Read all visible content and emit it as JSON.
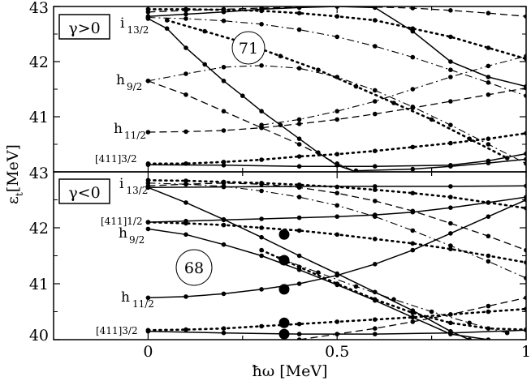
{
  "chart_data": [
    {
      "type": "line",
      "panel": "upper",
      "box_label": "γ>0",
      "circle_label": "71",
      "xlabel": "ħω [MeV]",
      "ylabel": "ε_t [MeV]",
      "xlim": [
        -0.25,
        1.0
      ],
      "ylim": [
        40.0,
        43.0
      ],
      "yticks": [
        "43",
        "42",
        "41"
      ],
      "level_labels": [
        {
          "main": "i",
          "sub": "13/2"
        },
        {
          "main": "h",
          "sub": "9/2"
        },
        {
          "main": "h",
          "sub": "11/2"
        },
        {
          "main": "[411]3/2",
          "sub": ""
        }
      ],
      "series": [
        {
          "style": "solid",
          "x": [
            0,
            0.05,
            0.1,
            0.15,
            0.2,
            0.25,
            0.3,
            0.35,
            0.4,
            0.45,
            0.5,
            0.55
          ],
          "y": [
            42.78,
            42.6,
            42.25,
            41.95,
            41.65,
            41.38,
            41.1,
            40.85,
            40.6,
            40.35,
            40.12,
            40.0
          ]
        },
        {
          "style": "solid",
          "x": [
            0,
            0.1,
            0.2,
            0.3,
            0.4,
            0.5,
            0.6,
            0.7,
            0.8,
            0.9,
            1.0
          ],
          "y": [
            42.82,
            42.86,
            42.9,
            42.95,
            42.98,
            43.0,
            42.98,
            42.55,
            42.0,
            41.72,
            41.55
          ]
        },
        {
          "style": "solid",
          "x": [
            0,
            0.2,
            0.4,
            0.6,
            0.8,
            0.9,
            1.0
          ],
          "y": [
            40.13,
            40.12,
            40.1,
            40.1,
            40.12,
            40.2,
            40.33
          ]
        },
        {
          "style": "solid",
          "x": [
            0.55,
            0.7,
            0.8,
            0.9,
            1.0
          ],
          "y": [
            40.02,
            40.05,
            40.1,
            40.16,
            40.23
          ]
        },
        {
          "style": "dotted",
          "x": [
            0,
            0.1,
            0.2,
            0.3,
            0.4,
            0.5,
            0.6,
            0.7,
            0.8,
            0.9,
            1.0
          ],
          "y": [
            40.15,
            40.15,
            40.18,
            40.22,
            40.28,
            40.32,
            40.38,
            40.45,
            40.52,
            40.6,
            40.7
          ]
        },
        {
          "style": "dotted",
          "x": [
            0,
            0.1,
            0.2,
            0.3,
            0.4,
            0.5,
            0.6,
            0.7,
            0.8,
            0.9,
            1.0
          ],
          "y": [
            42.95,
            42.95,
            42.94,
            42.92,
            42.88,
            42.82,
            42.75,
            42.6,
            42.45,
            42.25,
            42.05
          ]
        },
        {
          "style": "dotted",
          "x": [
            0.05,
            0.15,
            0.25,
            0.35,
            0.45,
            0.55,
            0.65,
            0.75,
            0.85,
            0.95
          ],
          "y": [
            42.75,
            42.55,
            42.35,
            42.1,
            41.85,
            41.55,
            41.25,
            40.95,
            40.6,
            40.25
          ]
        },
        {
          "style": "dashed",
          "x": [
            0,
            0.1,
            0.2,
            0.3,
            0.4,
            0.5,
            0.6,
            0.7,
            0.8,
            0.9,
            1.0
          ],
          "y": [
            40.72,
            40.73,
            40.75,
            40.8,
            40.87,
            40.95,
            41.05,
            41.16,
            41.28,
            41.4,
            41.52
          ]
        },
        {
          "style": "dashed",
          "x": [
            0,
            0.1,
            0.2,
            0.3,
            0.4,
            0.5,
            0.55
          ],
          "y": [
            41.65,
            41.4,
            41.1,
            40.8,
            40.5,
            40.15,
            40.0
          ]
        },
        {
          "style": "dashed",
          "x": [
            0,
            0.1,
            0.2,
            0.3,
            0.4,
            0.5,
            0.6,
            0.7,
            0.8,
            0.9,
            1.0
          ],
          "y": [
            42.9,
            42.93,
            42.95,
            42.97,
            42.99,
            43.0,
            42.99,
            42.97,
            42.93,
            42.88,
            42.82
          ]
        },
        {
          "style": "dashdot",
          "x": [
            0,
            0.1,
            0.2,
            0.3,
            0.4,
            0.5,
            0.6,
            0.7,
            0.8,
            0.9,
            1.0
          ],
          "y": [
            41.65,
            41.78,
            41.9,
            41.93,
            41.88,
            41.72,
            41.48,
            41.18,
            40.85,
            40.5,
            40.15
          ]
        },
        {
          "style": "dashdot",
          "x": [
            0,
            0.1,
            0.2,
            0.3,
            0.4,
            0.5,
            0.6,
            0.7,
            0.8,
            0.9,
            1.0
          ],
          "y": [
            42.8,
            42.78,
            42.74,
            42.68,
            42.58,
            42.45,
            42.28,
            42.08,
            41.85,
            41.62,
            41.38
          ]
        },
        {
          "style": "dashdot",
          "x": [
            0.3,
            0.4,
            0.5,
            0.6,
            0.7,
            0.8,
            0.9,
            1.0
          ],
          "y": [
            40.85,
            40.95,
            41.1,
            41.28,
            41.5,
            41.72,
            41.92,
            42.1
          ]
        }
      ]
    },
    {
      "type": "line",
      "panel": "lower",
      "box_label": "γ<0",
      "circle_label": "68",
      "xlabel": "ħω [MeV]",
      "ylabel": "ε_t [MeV]",
      "xlim": [
        -0.25,
        1.0
      ],
      "ylim": [
        40.0,
        43.0
      ],
      "xticks": [
        "0",
        "0.5",
        "1"
      ],
      "yticks": [
        "43",
        "42",
        "41",
        "40"
      ],
      "level_labels": [
        {
          "main": "i",
          "sub": "13/2"
        },
        {
          "main": "[411]1/2",
          "sub": ""
        },
        {
          "main": "h",
          "sub": "9/2"
        },
        {
          "main": "h",
          "sub": "11/2"
        },
        {
          "main": "[411]3/2",
          "sub": ""
        }
      ],
      "series": [
        {
          "style": "solid",
          "x": [
            0,
            0.1,
            0.2,
            0.3,
            0.4,
            0.5,
            0.6,
            0.7,
            0.8,
            0.85
          ],
          "y": [
            42.72,
            42.45,
            42.15,
            41.83,
            41.5,
            41.18,
            40.85,
            40.52,
            40.15,
            40.0
          ]
        },
        {
          "style": "solid",
          "x": [
            0,
            0.1,
            0.2,
            0.3,
            0.4,
            0.5,
            0.6,
            0.7,
            0.8,
            0.9,
            1.0
          ],
          "y": [
            42.1,
            42.12,
            42.14,
            42.16,
            42.18,
            42.2,
            42.23,
            42.28,
            42.36,
            42.45,
            42.55
          ]
        },
        {
          "style": "solid",
          "x": [
            0,
            0.1,
            0.2,
            0.3,
            0.4,
            0.5,
            0.6,
            0.7,
            0.8,
            0.9
          ],
          "y": [
            41.98,
            41.88,
            41.7,
            41.5,
            41.25,
            40.98,
            40.7,
            40.4,
            40.1,
            40.0
          ]
        },
        {
          "style": "solid",
          "x": [
            0,
            0.1,
            0.2,
            0.3,
            0.4,
            0.5,
            0.6,
            0.7,
            0.8,
            0.9,
            1.0
          ],
          "y": [
            40.75,
            40.77,
            40.82,
            40.9,
            41.0,
            41.15,
            41.35,
            41.6,
            41.9,
            42.2,
            42.5
          ]
        },
        {
          "style": "solid",
          "x": [
            0,
            0.2,
            0.4,
            0.6,
            0.8,
            1.0
          ],
          "y": [
            40.15,
            40.12,
            40.1,
            40.1,
            40.12,
            40.17
          ]
        },
        {
          "style": "solid",
          "x": [
            0,
            0.2,
            0.4,
            0.6,
            0.8,
            1.0
          ],
          "y": [
            42.72,
            42.73,
            42.74,
            42.74,
            42.74,
            42.75
          ]
        },
        {
          "style": "dotted",
          "x": [
            0,
            0.1,
            0.2,
            0.3,
            0.4,
            0.5,
            0.6,
            0.7,
            0.8,
            0.9,
            1.0
          ],
          "y": [
            42.85,
            42.84,
            42.82,
            42.8,
            42.77,
            42.73,
            42.68,
            42.62,
            42.55,
            42.45,
            42.35
          ]
        },
        {
          "style": "dotted",
          "x": [
            0,
            0.1,
            0.2,
            0.3,
            0.4,
            0.5,
            0.6,
            0.7,
            0.8,
            0.9,
            1.0
          ],
          "y": [
            42.1,
            42.08,
            42.05,
            42.0,
            41.95,
            41.88,
            41.8,
            41.72,
            41.62,
            41.5,
            41.38
          ]
        },
        {
          "style": "dotted",
          "x": [
            0,
            0.1,
            0.2,
            0.3,
            0.4,
            0.5,
            0.6,
            0.7,
            0.8,
            0.9,
            1.0
          ],
          "y": [
            40.17,
            40.18,
            40.2,
            40.24,
            40.28,
            40.32,
            40.36,
            40.4,
            40.45,
            40.5,
            40.55
          ]
        },
        {
          "style": "dotted",
          "x": [
            0.3,
            0.4,
            0.5,
            0.6,
            0.7,
            0.8,
            0.9,
            1.0
          ],
          "y": [
            41.6,
            41.3,
            41.0,
            40.72,
            40.48,
            40.3,
            40.2,
            40.18
          ]
        },
        {
          "style": "dashed",
          "x": [
            0,
            0.1,
            0.2,
            0.3,
            0.4,
            0.5,
            0.6,
            0.7,
            0.8,
            0.9,
            1.0
          ],
          "y": [
            42.75,
            42.78,
            42.8,
            42.78,
            42.72,
            42.62,
            42.48,
            42.3,
            42.08,
            41.85,
            41.6
          ]
        },
        {
          "style": "dashed",
          "x": [
            0.4,
            0.5,
            0.6,
            0.7,
            0.8,
            0.9,
            1.0
          ],
          "y": [
            40.0,
            40.1,
            40.2,
            40.32,
            40.45,
            40.6,
            40.75
          ]
        },
        {
          "style": "dashdot",
          "x": [
            0,
            0.1,
            0.2,
            0.3,
            0.4,
            0.5,
            0.6,
            0.7,
            0.8,
            0.9,
            1.0
          ],
          "y": [
            42.8,
            42.78,
            42.74,
            42.66,
            42.55,
            42.4,
            42.2,
            41.95,
            41.68,
            41.4,
            41.1
          ]
        },
        {
          "style": "dashdot",
          "x": [
            0.35,
            0.45,
            0.55,
            0.65,
            0.75,
            0.85,
            0.95
          ],
          "y": [
            41.45,
            41.2,
            40.95,
            40.72,
            40.5,
            40.3,
            40.12
          ]
        }
      ],
      "highlighted_points": [
        {
          "x": 0.36,
          "y": 41.88
        },
        {
          "x": 0.36,
          "y": 41.42
        },
        {
          "x": 0.36,
          "y": 40.9
        },
        {
          "x": 0.36,
          "y": 40.3
        },
        {
          "x": 0.36,
          "y": 40.1
        }
      ]
    }
  ]
}
